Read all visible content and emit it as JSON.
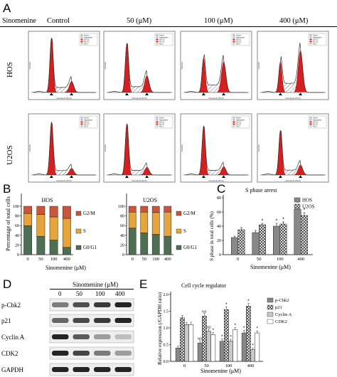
{
  "panelA": {
    "letter": "A",
    "drug_label": "Sinomenine",
    "conditions": [
      "Control",
      "50 (μM)",
      "100 (μM)",
      "400 (μM)"
    ],
    "rows": [
      {
        "label": "HOS",
        "g1_height": [
          0.98,
          0.88,
          0.62,
          0.55
        ],
        "g2_height": [
          0.2,
          0.3,
          0.55,
          0.75
        ]
      },
      {
        "label": "U2OS",
        "g1_height": [
          0.95,
          0.92,
          0.88,
          0.8
        ],
        "g2_height": [
          0.12,
          0.14,
          0.15,
          0.18
        ]
      }
    ],
    "axis_x": "Channels (PI-A)",
    "axis_y": "Number",
    "legend": [
      "Debris",
      "Aggregates",
      "Dip G1",
      "Dip G2",
      "Dip S"
    ]
  },
  "panelB": {
    "letter": "B",
    "ylabel": "Percentage of total cells",
    "xlabel": "Sinomenine (μM)",
    "colors": {
      "G0G1": "#4f6f55",
      "S": "#e6a43c",
      "G2M": "#c8553c"
    }
  },
  "panelC": {
    "letter": "C",
    "title": "S phase arrest",
    "ylabel": "S phase in total cells (%)",
    "xlabel": "Sinomenine (μM)",
    "legend": [
      "HOS",
      "U2OS"
    ],
    "star": "*"
  },
  "panelD": {
    "letter": "D",
    "header": "Sinomenine (μM)",
    "doses": [
      "0",
      "50",
      "100",
      "400"
    ],
    "proteins": [
      {
        "name": "p-Chk2",
        "intensity": [
          0.55,
          0.75,
          0.85,
          0.95
        ]
      },
      {
        "name": "p21",
        "intensity": [
          0.65,
          0.78,
          0.85,
          0.95
        ]
      },
      {
        "name": "Cyclin A",
        "intensity": [
          0.95,
          0.7,
          0.4,
          0.25
        ]
      },
      {
        "name": "CDK2",
        "intensity": [
          0.95,
          0.8,
          0.55,
          0.4
        ]
      },
      {
        "name": "GAPDH",
        "intensity": [
          0.95,
          0.95,
          0.95,
          0.95
        ]
      }
    ]
  },
  "panelE": {
    "letter": "E",
    "title": "Cell cycle regulator",
    "ylabel": "Relative expression (/GAPDH ratio)",
    "xlabel": "Sinomenine (μM)",
    "legend": [
      "p-Chk2",
      "p21",
      "Cyclin A",
      "CDK2"
    ],
    "ns": "NS",
    "star": "*"
  },
  "chart_data": [
    {
      "type": "bar",
      "title": "HOS",
      "stacked": true,
      "categories": [
        "0",
        "50",
        "100",
        "400"
      ],
      "series": [
        {
          "name": "G0/G1",
          "values": [
            60,
            38,
            30,
            15
          ]
        },
        {
          "name": "S",
          "values": [
            25,
            45,
            48,
            60
          ]
        },
        {
          "name": "G2/M",
          "values": [
            15,
            17,
            22,
            25
          ]
        }
      ],
      "xlabel": "Sinomenine (μM)",
      "ylabel": "Percentage of total cells",
      "ylim": [
        0,
        100
      ],
      "yticks": [
        "0",
        "20",
        "40",
        "60",
        "80",
        "100"
      ],
      "legend_position": "right"
    },
    {
      "type": "bar",
      "title": "U2OS",
      "stacked": true,
      "categories": [
        "0",
        "50",
        "100",
        "400"
      ],
      "series": [
        {
          "name": "G0/G1",
          "values": [
            55,
            45,
            42,
            38
          ]
        },
        {
          "name": "S",
          "values": [
            33,
            43,
            45,
            50
          ]
        },
        {
          "name": "G2/M",
          "values": [
            12,
            12,
            13,
            12
          ]
        }
      ],
      "xlabel": "Sinomenine (μM)",
      "ylim": [
        0,
        100
      ],
      "yticks": [
        "0",
        "20",
        "40",
        "60",
        "80",
        "100"
      ],
      "legend_position": "right"
    },
    {
      "type": "bar",
      "title": "S phase arrest",
      "categories": [
        "0",
        "50",
        "100",
        "400"
      ],
      "series": [
        {
          "name": "HOS",
          "values": [
            24,
            31,
            40,
            64
          ],
          "errors": [
            2,
            3,
            4,
            5
          ],
          "sig": [
            "",
            "",
            "*",
            "*"
          ]
        },
        {
          "name": "U2OS",
          "values": [
            35,
            42,
            43,
            55
          ],
          "errors": [
            3,
            2,
            3,
            4
          ],
          "sig": [
            "",
            "*",
            "*",
            "*"
          ]
        }
      ],
      "xlabel": "Sinomenine (μM)",
      "ylabel": "S phase in total cells (%)",
      "ylim": [
        0,
        80
      ],
      "yticks": [
        "0",
        "20",
        "40",
        "60",
        "80"
      ],
      "legend_position": "top-right"
    },
    {
      "type": "bar",
      "title": "Cell cycle regulator",
      "categories": [
        "0",
        "50",
        "100",
        "400"
      ],
      "series": [
        {
          "name": "p-Chk2",
          "values": [
            0.4,
            0.55,
            0.6,
            0.85
          ],
          "errors": [
            0.06,
            0.07,
            0.07,
            0.08
          ],
          "sig": [
            "",
            "NS",
            "*",
            "*"
          ]
        },
        {
          "name": "p21",
          "values": [
            1.3,
            1.35,
            1.55,
            1.65
          ],
          "errors": [
            0.08,
            0.08,
            0.08,
            0.08
          ],
          "sig": [
            "",
            "NS",
            "*",
            "*"
          ]
        },
        {
          "name": "Cyclin A",
          "values": [
            1.1,
            0.9,
            0.6,
            0.35
          ],
          "errors": [
            0.06,
            0.06,
            0.06,
            0.05
          ],
          "sig": [
            "",
            "NS",
            "*",
            "*"
          ]
        },
        {
          "name": "CDK2",
          "values": [
            1.1,
            0.8,
            0.95,
            0.85
          ],
          "errors": [
            0.07,
            0.06,
            0.06,
            0.06
          ],
          "sig": [
            "",
            "*",
            "*",
            "*"
          ]
        }
      ],
      "xlabel": "Sinomenine (μM)",
      "ylabel": "Relative expression (/GAPDH ratio)",
      "ylim": [
        0,
        2.0
      ],
      "yticks": [
        "0.0",
        "0.5",
        "1.0",
        "1.5",
        "2.0"
      ],
      "legend_position": "right"
    }
  ]
}
